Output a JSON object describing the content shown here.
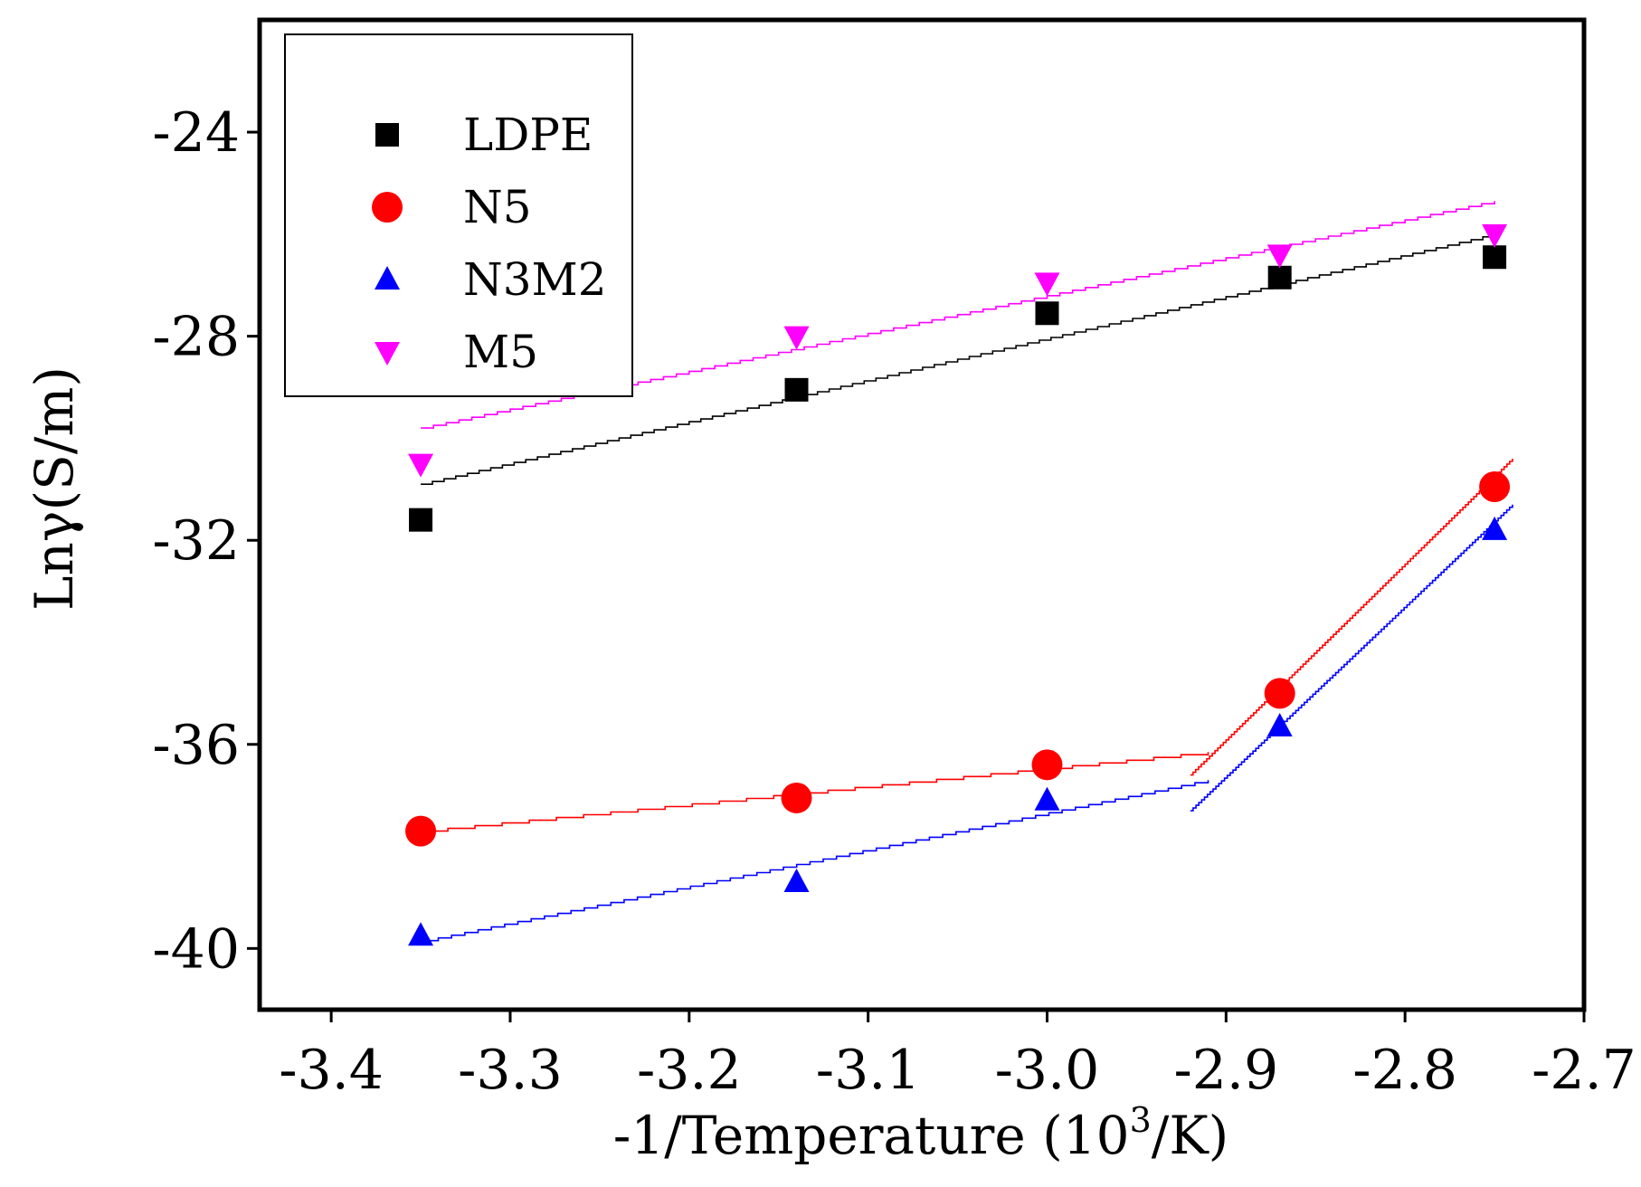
{
  "chart_data": {
    "type": "scatter",
    "title": "",
    "xlabel_main": "-1/Temperature (10",
    "xlabel_sup": "3",
    "xlabel_end": "/K)",
    "ylabel": "Lnγ(S/m)",
    "xlim": [
      -3.44,
      -2.7
    ],
    "ylim": [
      -41.2,
      -21.8
    ],
    "xticks": [
      -3.4,
      -3.3,
      -3.2,
      -3.1,
      -3.0,
      -2.9,
      -2.8,
      -2.7
    ],
    "xtick_labels": [
      "-3.4",
      "-3.3",
      "-3.2",
      "-3.1",
      "-3.0",
      "-2.9",
      "-2.8",
      "-2.7"
    ],
    "yticks": [
      -24,
      -28,
      -32,
      -36,
      -40
    ],
    "ytick_labels": [
      "-24",
      "-28",
      "-32",
      "-36",
      "-40"
    ],
    "legend_position": "top-left",
    "series": [
      {
        "name": "LDPE",
        "color": "#000000",
        "marker": "square",
        "x": [
          -3.35,
          -3.14,
          -3.0,
          -2.87,
          -2.75
        ],
        "y": [
          -31.6,
          -29.05,
          -27.55,
          -26.85,
          -26.45
        ],
        "fits": [
          {
            "x": [
              -3.35,
              -2.75
            ],
            "y": [
              -30.9,
              -26.0
            ]
          }
        ]
      },
      {
        "name": "N5",
        "color": "#ff0000",
        "marker": "circle",
        "x": [
          -3.35,
          -3.14,
          -3.0,
          -2.87,
          -2.75
        ],
        "y": [
          -37.7,
          -37.05,
          -36.4,
          -35.0,
          -30.95
        ],
        "fits": [
          {
            "x": [
              -3.35,
              -2.91
            ],
            "y": [
              -37.7,
              -36.15
            ]
          },
          {
            "x": [
              -2.92,
              -2.74
            ],
            "y": [
              -36.6,
              -30.4
            ]
          }
        ]
      },
      {
        "name": "N3M2",
        "color": "#0000ff",
        "marker": "triangle-up",
        "x": [
          -3.35,
          -3.14,
          -3.0,
          -2.87,
          -2.75
        ],
        "y": [
          -39.75,
          -38.7,
          -37.1,
          -35.65,
          -31.8
        ],
        "fits": [
          {
            "x": [
              -3.355,
              -2.91
            ],
            "y": [
              -39.9,
              -36.7
            ]
          },
          {
            "x": [
              -2.92,
              -2.74
            ],
            "y": [
              -37.3,
              -31.3
            ]
          }
        ]
      },
      {
        "name": "M5",
        "color": "#ff00ff",
        "marker": "triangle-down",
        "x": [
          -3.35,
          -3.14,
          -3.0,
          -2.87,
          -2.75
        ],
        "y": [
          -30.5,
          -28.0,
          -26.95,
          -26.4,
          -26.0
        ],
        "fits": [
          {
            "x": [
              -3.35,
              -2.75
            ],
            "y": [
              -29.8,
              -25.35
            ]
          }
        ]
      }
    ]
  }
}
